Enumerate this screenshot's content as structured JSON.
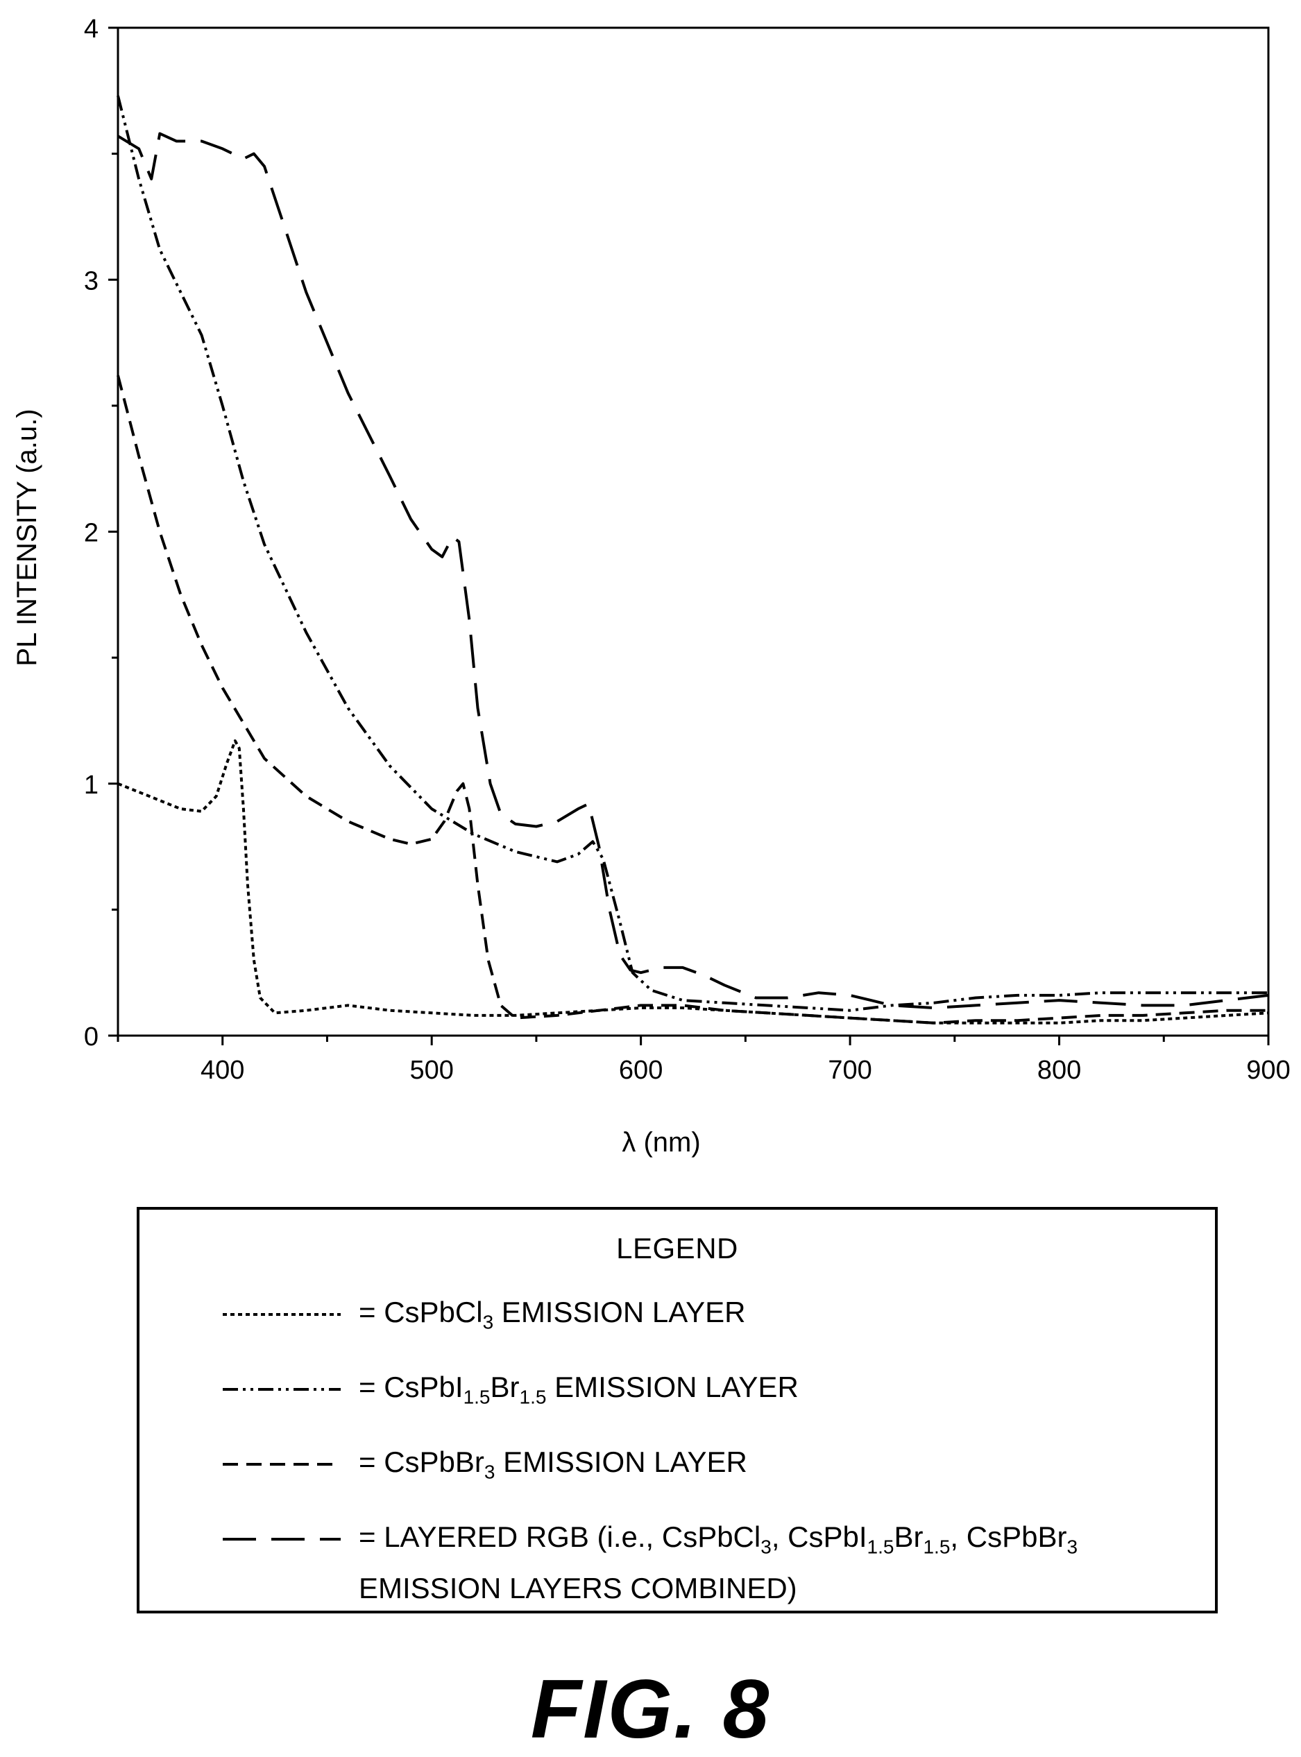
{
  "chart_data": {
    "type": "line",
    "title": "",
    "xlabel": "λ (nm)",
    "ylabel": "PL INTENSITY (a.u.)",
    "xlim": [
      350,
      900
    ],
    "ylim": [
      0,
      4
    ],
    "x_ticks": [
      400,
      500,
      600,
      700,
      800,
      900
    ],
    "y_ticks": [
      0,
      1,
      2,
      3,
      4
    ],
    "grid": false,
    "legend_placement": "below",
    "series": [
      {
        "name": "CsPbCl3 EMISSION LAYER",
        "style": "dotted",
        "points": [
          [
            350,
            1.0
          ],
          [
            365,
            0.95
          ],
          [
            380,
            0.9
          ],
          [
            390,
            0.89
          ],
          [
            397,
            0.95
          ],
          [
            402,
            1.08
          ],
          [
            406,
            1.17
          ],
          [
            408,
            1.14
          ],
          [
            410,
            0.9
          ],
          [
            412,
            0.6
          ],
          [
            415,
            0.3
          ],
          [
            418,
            0.15
          ],
          [
            425,
            0.09
          ],
          [
            440,
            0.1
          ],
          [
            460,
            0.12
          ],
          [
            480,
            0.1
          ],
          [
            500,
            0.09
          ],
          [
            520,
            0.08
          ],
          [
            540,
            0.08
          ],
          [
            560,
            0.09
          ],
          [
            580,
            0.1
          ],
          [
            600,
            0.11
          ],
          [
            620,
            0.11
          ],
          [
            640,
            0.1
          ],
          [
            660,
            0.09
          ],
          [
            680,
            0.08
          ],
          [
            700,
            0.07
          ],
          [
            720,
            0.06
          ],
          [
            740,
            0.05
          ],
          [
            760,
            0.05
          ],
          [
            780,
            0.05
          ],
          [
            800,
            0.05
          ],
          [
            820,
            0.06
          ],
          [
            840,
            0.06
          ],
          [
            860,
            0.07
          ],
          [
            880,
            0.08
          ],
          [
            900,
            0.09
          ]
        ]
      },
      {
        "name": "CsPbI1.5Br1.5 EMISSION LAYER",
        "style": "dash-dot-dot",
        "points": [
          [
            350,
            3.73
          ],
          [
            360,
            3.4
          ],
          [
            370,
            3.12
          ],
          [
            380,
            2.95
          ],
          [
            390,
            2.78
          ],
          [
            400,
            2.5
          ],
          [
            410,
            2.2
          ],
          [
            420,
            1.95
          ],
          [
            440,
            1.6
          ],
          [
            460,
            1.3
          ],
          [
            480,
            1.07
          ],
          [
            500,
            0.9
          ],
          [
            520,
            0.8
          ],
          [
            540,
            0.73
          ],
          [
            560,
            0.69
          ],
          [
            570,
            0.72
          ],
          [
            577,
            0.77
          ],
          [
            582,
            0.7
          ],
          [
            590,
            0.45
          ],
          [
            596,
            0.25
          ],
          [
            605,
            0.18
          ],
          [
            620,
            0.14
          ],
          [
            640,
            0.13
          ],
          [
            660,
            0.12
          ],
          [
            680,
            0.11
          ],
          [
            700,
            0.1
          ],
          [
            720,
            0.12
          ],
          [
            740,
            0.13
          ],
          [
            760,
            0.15
          ],
          [
            780,
            0.16
          ],
          [
            800,
            0.16
          ],
          [
            820,
            0.17
          ],
          [
            840,
            0.17
          ],
          [
            860,
            0.17
          ],
          [
            880,
            0.17
          ],
          [
            900,
            0.17
          ]
        ]
      },
      {
        "name": "CsPbBr3 EMISSION LAYER",
        "style": "dashed",
        "points": [
          [
            350,
            2.62
          ],
          [
            360,
            2.3
          ],
          [
            370,
            2.0
          ],
          [
            380,
            1.75
          ],
          [
            390,
            1.55
          ],
          [
            400,
            1.38
          ],
          [
            420,
            1.1
          ],
          [
            440,
            0.95
          ],
          [
            460,
            0.85
          ],
          [
            480,
            0.78
          ],
          [
            490,
            0.76
          ],
          [
            500,
            0.78
          ],
          [
            506,
            0.85
          ],
          [
            512,
            0.97
          ],
          [
            515,
            1.0
          ],
          [
            518,
            0.9
          ],
          [
            522,
            0.6
          ],
          [
            527,
            0.3
          ],
          [
            533,
            0.12
          ],
          [
            540,
            0.07
          ],
          [
            560,
            0.08
          ],
          [
            580,
            0.1
          ],
          [
            600,
            0.12
          ],
          [
            620,
            0.12
          ],
          [
            640,
            0.1
          ],
          [
            660,
            0.09
          ],
          [
            680,
            0.08
          ],
          [
            700,
            0.07
          ],
          [
            720,
            0.06
          ],
          [
            740,
            0.05
          ],
          [
            760,
            0.06
          ],
          [
            780,
            0.06
          ],
          [
            800,
            0.07
          ],
          [
            820,
            0.08
          ],
          [
            840,
            0.08
          ],
          [
            860,
            0.09
          ],
          [
            880,
            0.1
          ],
          [
            900,
            0.1
          ]
        ]
      },
      {
        "name": "LAYERED RGB (i.e., CsPbCl3, CsPbI1.5Br1.5, CsPbBr3 EMISSION LAYERS COMBINED)",
        "style": "long-dash",
        "points": [
          [
            350,
            3.57
          ],
          [
            360,
            3.52
          ],
          [
            366,
            3.4
          ],
          [
            370,
            3.58
          ],
          [
            378,
            3.55
          ],
          [
            390,
            3.55
          ],
          [
            400,
            3.52
          ],
          [
            410,
            3.48
          ],
          [
            415,
            3.5
          ],
          [
            420,
            3.45
          ],
          [
            430,
            3.2
          ],
          [
            440,
            2.95
          ],
          [
            460,
            2.55
          ],
          [
            480,
            2.22
          ],
          [
            490,
            2.05
          ],
          [
            500,
            1.93
          ],
          [
            505,
            1.9
          ],
          [
            510,
            1.98
          ],
          [
            513,
            1.96
          ],
          [
            518,
            1.65
          ],
          [
            522,
            1.3
          ],
          [
            528,
            1.0
          ],
          [
            533,
            0.88
          ],
          [
            540,
            0.84
          ],
          [
            550,
            0.83
          ],
          [
            560,
            0.85
          ],
          [
            570,
            0.9
          ],
          [
            575,
            0.92
          ],
          [
            580,
            0.75
          ],
          [
            585,
            0.5
          ],
          [
            590,
            0.32
          ],
          [
            595,
            0.26
          ],
          [
            600,
            0.25
          ],
          [
            610,
            0.27
          ],
          [
            620,
            0.27
          ],
          [
            630,
            0.24
          ],
          [
            640,
            0.2
          ],
          [
            655,
            0.15
          ],
          [
            670,
            0.15
          ],
          [
            685,
            0.17
          ],
          [
            700,
            0.16
          ],
          [
            710,
            0.14
          ],
          [
            720,
            0.12
          ],
          [
            740,
            0.11
          ],
          [
            760,
            0.12
          ],
          [
            780,
            0.13
          ],
          [
            800,
            0.14
          ],
          [
            820,
            0.13
          ],
          [
            840,
            0.12
          ],
          [
            860,
            0.12
          ],
          [
            880,
            0.14
          ],
          [
            900,
            0.16
          ]
        ]
      }
    ]
  },
  "legend": {
    "title": "LEGEND",
    "entries": [
      {
        "prefix": "= CsPbCl",
        "sub1": "3",
        "suffix": " EMISSION LAYER"
      },
      {
        "prefix": "= CsPbI",
        "sub1": "1.5",
        "mid": "Br",
        "sub2": "1.5",
        "suffix": " EMISSION LAYER"
      },
      {
        "prefix": "= CsPbBr",
        "sub1": "3",
        "suffix": " EMISSION LAYER"
      },
      {
        "line1": "= LAYERED RGB (i.e., CsPbCl",
        "line1_sub": "3",
        "line1_b": ", CsPbI",
        "line1_sub2": "1.5",
        "line1_c": "Br",
        "line1_sub3": "1.5",
        "line1_d": ", CsPbBr",
        "line1_sub4": "3",
        "line2": "EMISSION LAYERS COMBINED)"
      }
    ]
  },
  "figure_label": "FIG. 8"
}
